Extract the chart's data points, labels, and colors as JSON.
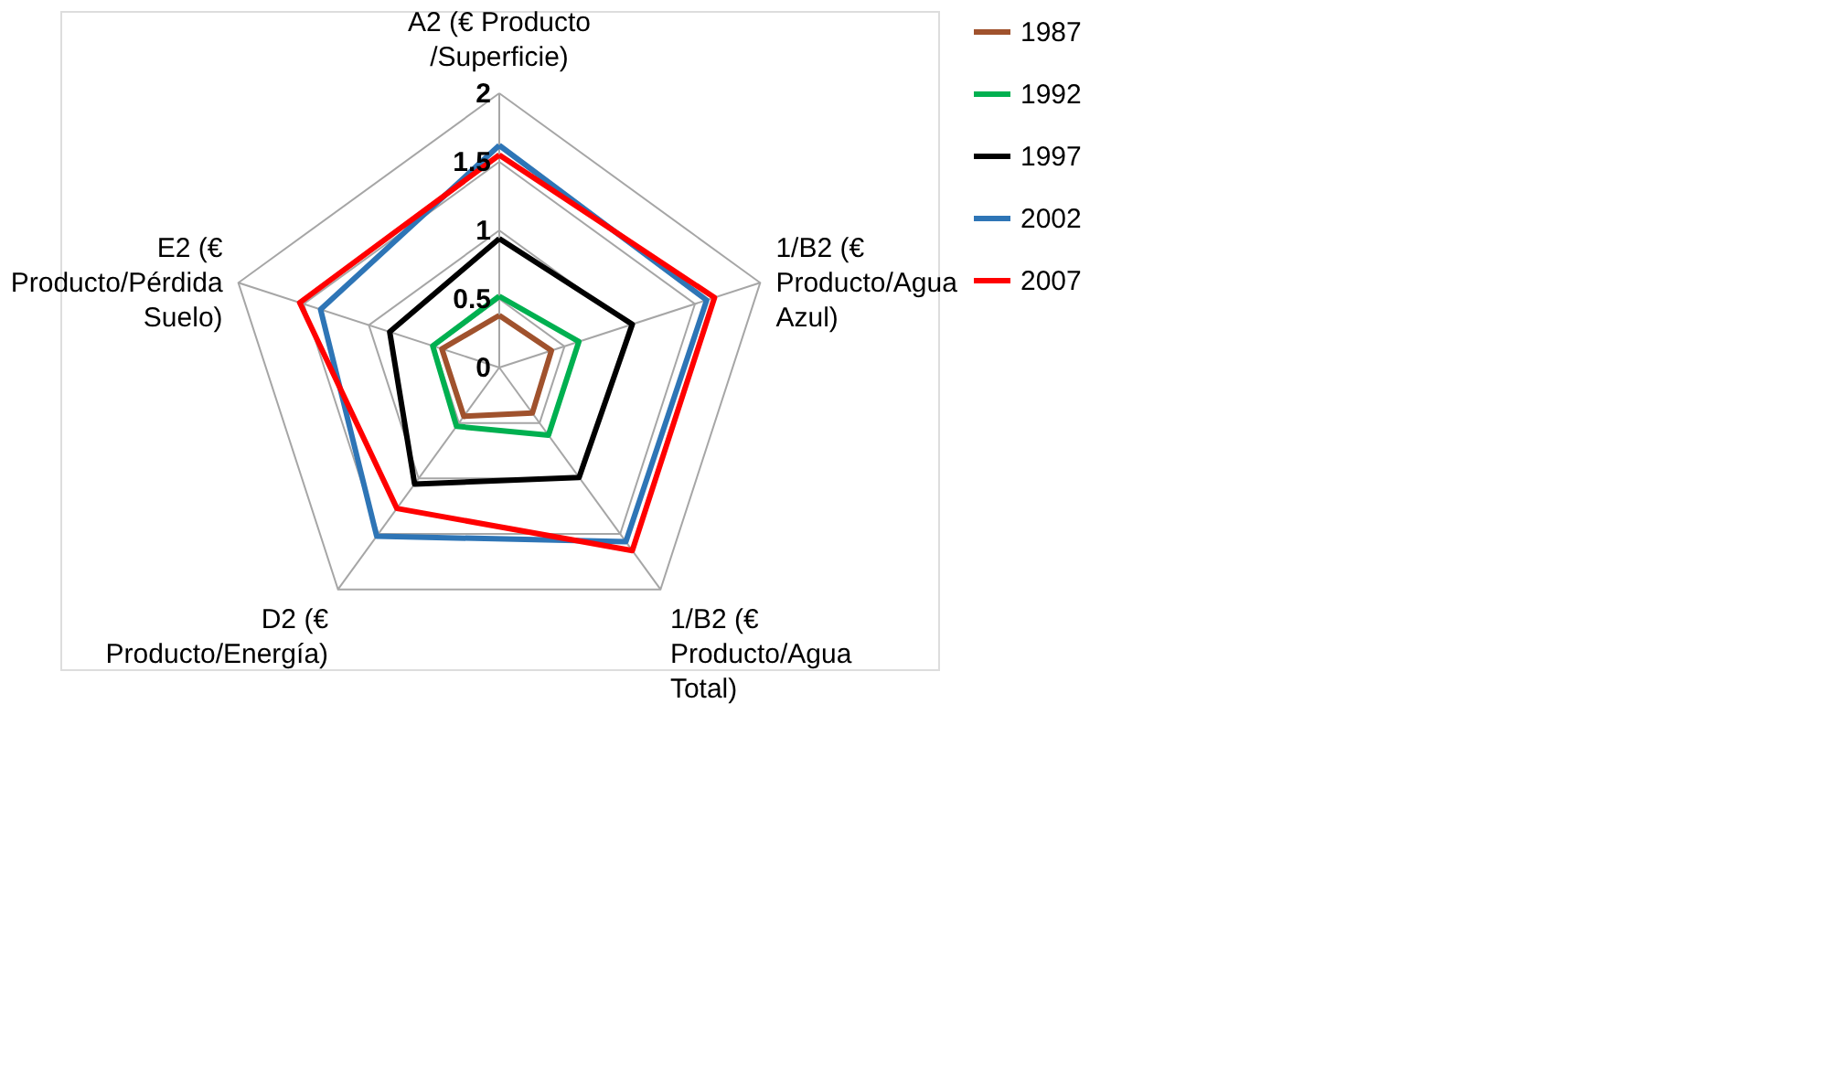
{
  "chart_data": {
    "type": "radar",
    "categories": [
      "A2 (€  Producto /Superficie)",
      "1/B2 (€ Producto/Agua Azul)",
      "1/B2 (€ Producto/Agua Total)",
      "D2  (€ Producto/Energía)",
      "E2 (€ Producto/Pérdida Suelo)"
    ],
    "series": [
      {
        "name": "1987",
        "color": "#a0522d",
        "values": [
          0.38,
          0.4,
          0.41,
          0.44,
          0.44
        ]
      },
      {
        "name": "1992",
        "color": "#00b050",
        "values": [
          0.52,
          0.61,
          0.61,
          0.53,
          0.51
        ]
      },
      {
        "name": "1997",
        "color": "#000000",
        "values": [
          0.94,
          1.02,
          0.99,
          1.05,
          0.84
        ]
      },
      {
        "name": "2002",
        "color": "#2e75b6",
        "values": [
          1.62,
          1.59,
          1.57,
          1.52,
          1.37
        ]
      },
      {
        "name": "2007",
        "color": "#ff0000",
        "values": [
          1.55,
          1.65,
          1.65,
          1.27,
          1.53
        ]
      }
    ],
    "ylim": [
      0,
      2
    ],
    "yticks": [
      0,
      0.5,
      1,
      1.5,
      2
    ],
    "grid": true,
    "legend": "right"
  }
}
